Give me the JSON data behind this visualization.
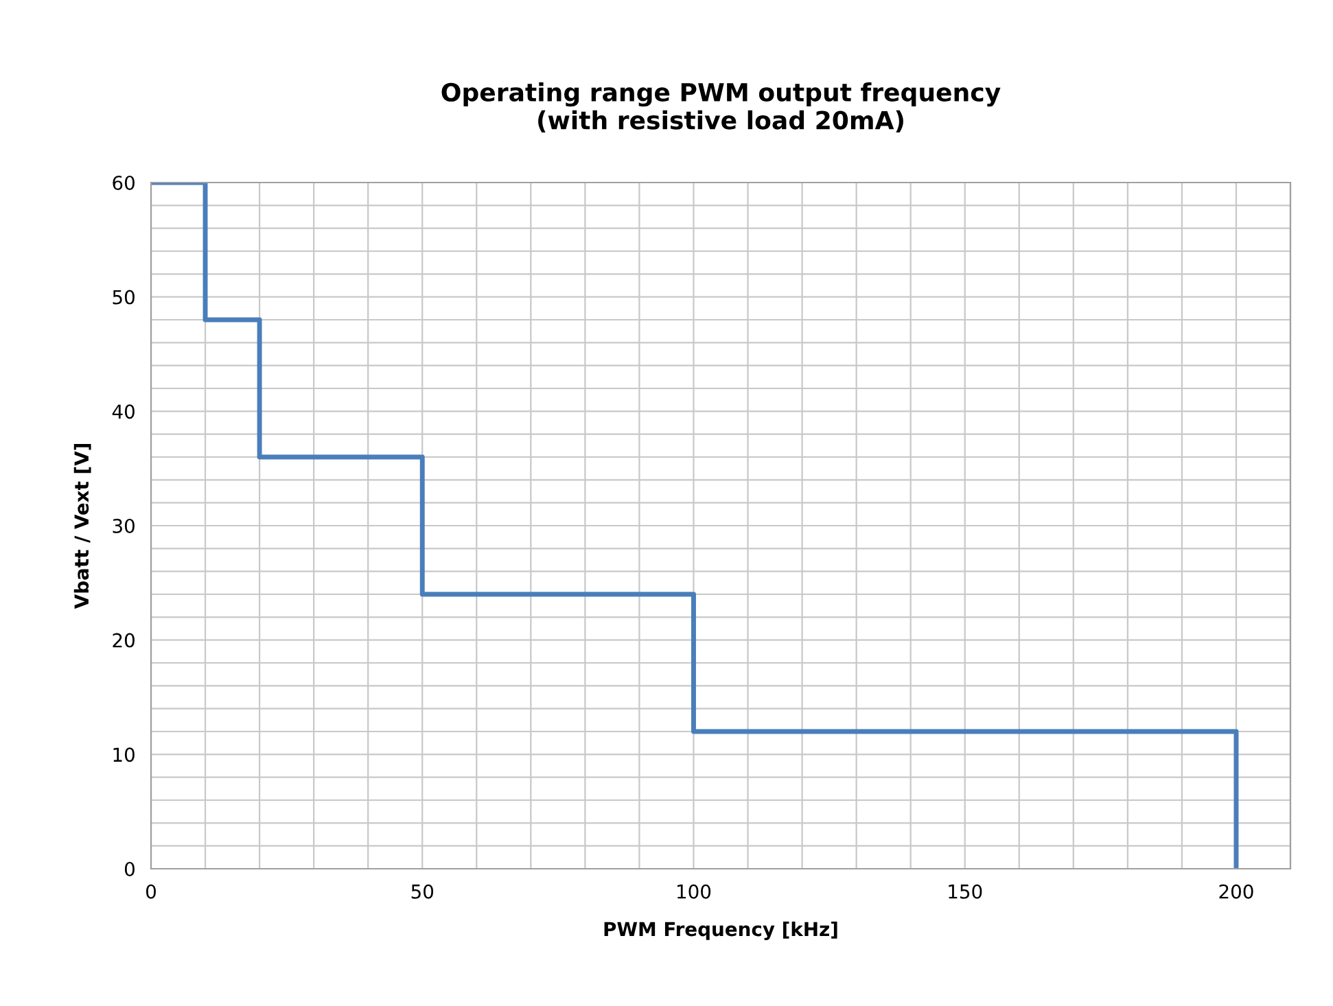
{
  "chart_data": {
    "type": "step",
    "title": "Operating range PWM output frequency\n(with resistive load 20mA)",
    "xlabel": "PWM Frequency [kHz]",
    "ylabel": "Vbatt / Vext [V]",
    "x": [
      0,
      10,
      20,
      50,
      100,
      200
    ],
    "series": [
      {
        "color": "#4a7ebb",
        "values": [
          60,
          48,
          36,
          24,
          12,
          0
        ]
      }
    ],
    "xlim": [
      0,
      210
    ],
    "xticks": [
      0,
      {
        "value": 10,
        "label": null
      },
      {
        "value": 20,
        "label": null
      },
      {
        "value": 30,
        "label": null
      },
      {
        "value": 40,
        "label": null
      },
      50,
      {
        "value": 60,
        "label": null
      },
      {
        "value": 70,
        "label": null
      },
      {
        "value": 80,
        "label": null
      },
      {
        "value": 90,
        "label": null
      },
      100,
      {
        "value": 110,
        "label": null
      },
      {
        "value": 120,
        "label": null
      },
      {
        "value": 130,
        "label": null
      },
      {
        "value": 140,
        "label": null
      },
      150,
      {
        "value": 160,
        "label": null
      },
      {
        "value": 170,
        "label": null
      },
      {
        "value": 180,
        "label": null
      },
      {
        "value": 190,
        "label": null
      },
      200,
      {
        "value": 210,
        "label": null
      }
    ],
    "ylim": [
      0,
      60
    ],
    "yticks": [
      0,
      {
        "value": 2,
        "label": null
      },
      {
        "value": 4,
        "label": null
      },
      {
        "value": 6,
        "label": null
      },
      {
        "value": 8,
        "label": null
      },
      10,
      {
        "value": 12,
        "label": null
      },
      {
        "value": 14,
        "label": null
      },
      {
        "value": 16,
        "label": null
      },
      {
        "value": 18,
        "label": null
      },
      20,
      {
        "value": 22,
        "label": null
      },
      {
        "value": 24,
        "label": null
      },
      {
        "value": 26,
        "label": null
      },
      {
        "value": 28,
        "label": null
      },
      30,
      {
        "value": 32,
        "label": null
      },
      {
        "value": 34,
        "label": null
      },
      {
        "value": 36,
        "label": null
      },
      {
        "value": 38,
        "label": null
      },
      40,
      {
        "value": 42,
        "label": null
      },
      {
        "value": 44,
        "label": null
      },
      {
        "value": 46,
        "label": null
      },
      {
        "value": 48,
        "label": null
      },
      50,
      {
        "value": 52,
        "label": null
      },
      {
        "value": 54,
        "label": null
      },
      {
        "value": 56,
        "label": null
      },
      {
        "value": 58,
        "label": null
      },
      60
    ],
    "grid": true,
    "legend": false,
    "marker": "none",
    "line_style": "solid"
  }
}
